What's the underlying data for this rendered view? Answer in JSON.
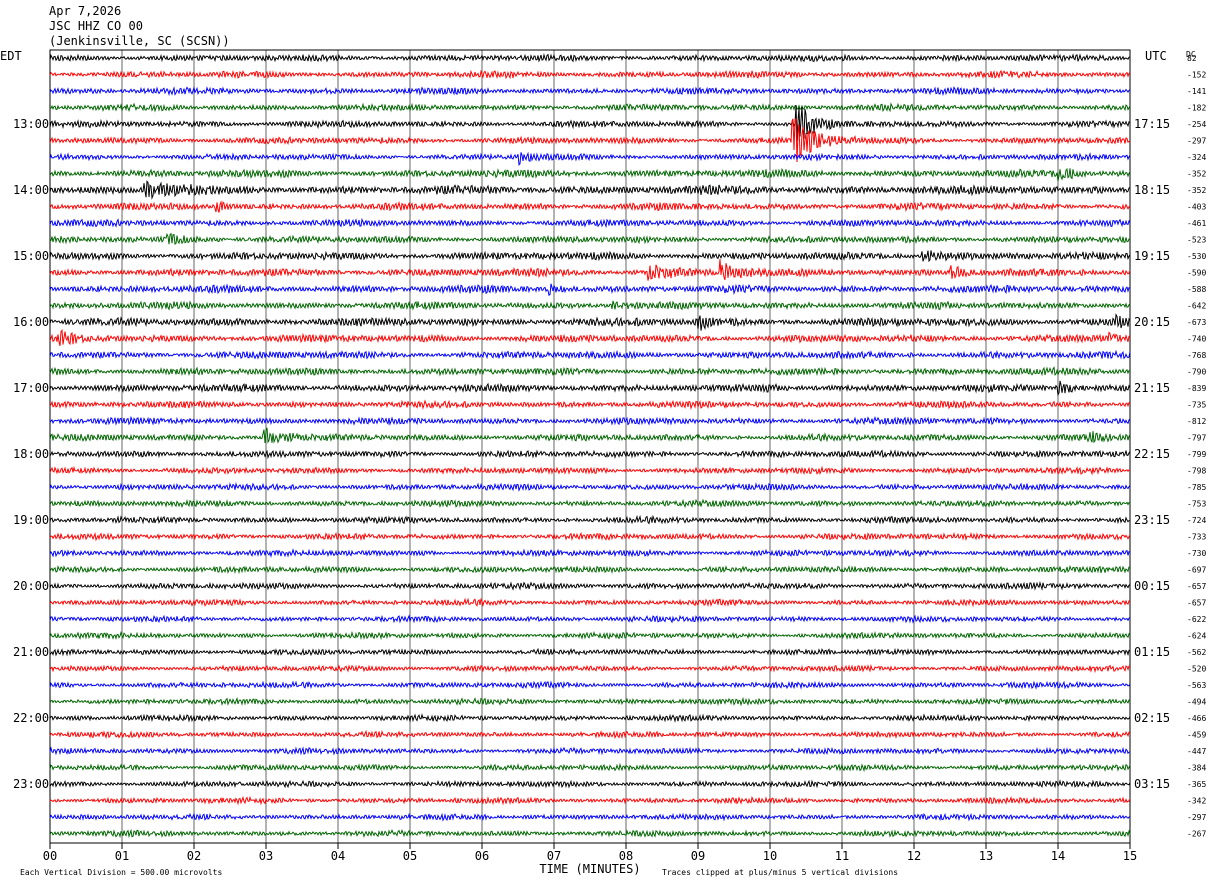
{
  "header": {
    "date": "Apr 7,2026",
    "station": "JSC HHZ CO 00",
    "location": "(Jenkinsville, SC (SCSN))"
  },
  "chart_data": {
    "type": "line",
    "title": "",
    "xlabel": "TIME (MINUTES)",
    "ylabel": "",
    "x_ticks": [
      "00",
      "01",
      "02",
      "03",
      "04",
      "05",
      "06",
      "07",
      "08",
      "09",
      "10",
      "11",
      "12",
      "13",
      "14",
      "15"
    ],
    "xlim": [
      0,
      15
    ],
    "left_timezone": "EDT",
    "right_timezone": "UTC",
    "dc_header": "DC",
    "left_hour_labels": [
      "13:00",
      "14:00",
      "15:00",
      "16:00",
      "17:00",
      "18:00",
      "19:00",
      "20:00",
      "21:00",
      "22:00",
      "23:00"
    ],
    "right_hour_labels": [
      "17:15",
      "18:15",
      "19:15",
      "20:15",
      "21:15",
      "22:15",
      "23:15",
      "00:15",
      "01:15",
      "02:15",
      "03:15"
    ],
    "first_labeled_trace_index": 4,
    "traces_per_hour": 4,
    "trace_colors": [
      "#000000",
      "#ff0000",
      "#0000ff",
      "#006600"
    ],
    "dc_offsets": [
      82,
      -152,
      -141,
      -182,
      -254,
      -297,
      -324,
      -352,
      -352,
      -403,
      -461,
      -523,
      -530,
      -590,
      -588,
      -642,
      -673,
      -740,
      -768,
      -790,
      -839,
      -735,
      -812,
      -797,
      -799,
      -798,
      -785,
      -753,
      -724,
      -733,
      -730,
      -697,
      -657,
      -657,
      -622,
      -624,
      -562,
      -520,
      -563,
      -494,
      -466,
      -459,
      -447,
      -384,
      -365,
      -342,
      -297,
      -267
    ],
    "base_amplitude": [
      2.5,
      2.5,
      2.5,
      2.5,
      2.5,
      2.5,
      2.3,
      3.0,
      3.5,
      2.8,
      2.6,
      2.6,
      3.0,
      3.0,
      3.0,
      2.8,
      3.2,
      3.0,
      2.8,
      2.8,
      3.0,
      2.6,
      2.6,
      2.6,
      2.6,
      2.4,
      2.4,
      2.4,
      2.4,
      2.4,
      2.4,
      2.4,
      2.4,
      2.2,
      2.2,
      2.2,
      2.2,
      2.2,
      2.2,
      2.2,
      2.2,
      2.2,
      2.2,
      2.2,
      2.2,
      2.2,
      2.2,
      2.2
    ],
    "events": [
      {
        "trace": 4,
        "minute": 10.35,
        "duration": 0.55,
        "amplitude": 30
      },
      {
        "trace": 5,
        "minute": 10.3,
        "duration": 0.9,
        "amplitude": 28
      },
      {
        "trace": 6,
        "minute": 6.5,
        "duration": 0.5,
        "amplitude": 6
      },
      {
        "trace": 7,
        "minute": 14.0,
        "duration": 0.5,
        "amplitude": 8
      },
      {
        "trace": 8,
        "minute": 1.3,
        "duration": 1.2,
        "amplitude": 7
      },
      {
        "trace": 9,
        "minute": 2.3,
        "duration": 0.4,
        "amplitude": 6
      },
      {
        "trace": 11,
        "minute": 1.6,
        "duration": 0.8,
        "amplitude": 6
      },
      {
        "trace": 12,
        "minute": 12.1,
        "duration": 0.8,
        "amplitude": 7
      },
      {
        "trace": 13,
        "minute": 8.3,
        "duration": 0.9,
        "amplitude": 9
      },
      {
        "trace": 13,
        "minute": 9.3,
        "duration": 0.6,
        "amplitude": 12
      },
      {
        "trace": 13,
        "minute": 12.5,
        "duration": 0.5,
        "amplitude": 7
      },
      {
        "trace": 14,
        "minute": 6.9,
        "duration": 0.4,
        "amplitude": 6
      },
      {
        "trace": 15,
        "minute": 7.8,
        "duration": 0.4,
        "amplitude": 6
      },
      {
        "trace": 16,
        "minute": 9.0,
        "duration": 0.6,
        "amplitude": 7
      },
      {
        "trace": 16,
        "minute": 14.8,
        "duration": 0.2,
        "amplitude": 7
      },
      {
        "trace": 17,
        "minute": 0.1,
        "duration": 0.5,
        "amplitude": 8
      },
      {
        "trace": 17,
        "minute": 14.7,
        "duration": 0.3,
        "amplitude": 7
      },
      {
        "trace": 20,
        "minute": 14.0,
        "duration": 0.4,
        "amplitude": 8
      },
      {
        "trace": 23,
        "minute": 2.95,
        "duration": 0.7,
        "amplitude": 12
      },
      {
        "trace": 23,
        "minute": 14.4,
        "duration": 0.6,
        "amplitude": 6
      }
    ],
    "footer_left": "Each Vertical Division =  500.00 microvolts",
    "footer_right": "Traces clipped at plus/minus 5 vertical divisions"
  }
}
